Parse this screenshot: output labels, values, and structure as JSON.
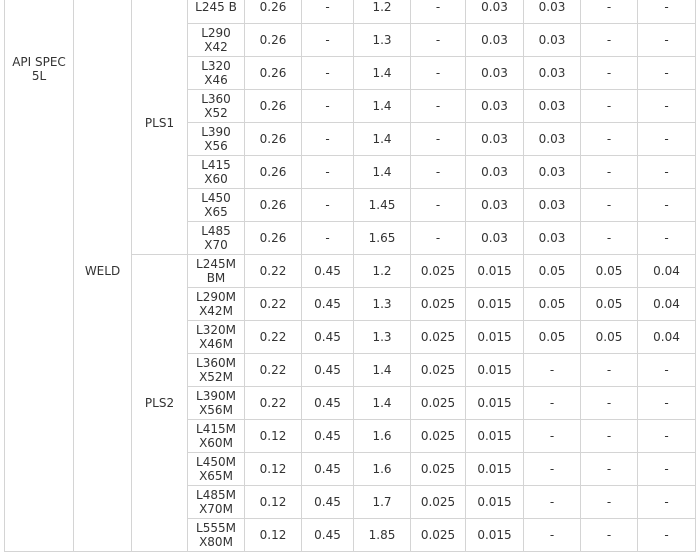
{
  "standard": "API SPEC 5L",
  "process": "WELD",
  "groups": [
    {
      "level": "PLS1",
      "rows": [
        {
          "grade": [
            "L245 B"
          ],
          "values": [
            "0.26",
            "-",
            "1.2",
            "-",
            "0.03",
            "0.03",
            "-",
            "-"
          ]
        },
        {
          "grade": [
            "L290",
            "X42"
          ],
          "values": [
            "0.26",
            "-",
            "1.3",
            "-",
            "0.03",
            "0.03",
            "-",
            "-"
          ]
        },
        {
          "grade": [
            "L320",
            "X46"
          ],
          "values": [
            "0.26",
            "-",
            "1.4",
            "-",
            "0.03",
            "0.03",
            "-",
            "-"
          ]
        },
        {
          "grade": [
            "L360",
            "X52"
          ],
          "values": [
            "0.26",
            "-",
            "1.4",
            "-",
            "0.03",
            "0.03",
            "-",
            "-"
          ]
        },
        {
          "grade": [
            "L390",
            "X56"
          ],
          "values": [
            "0.26",
            "-",
            "1.4",
            "-",
            "0.03",
            "0.03",
            "-",
            "-"
          ]
        },
        {
          "grade": [
            "L415",
            "X60"
          ],
          "values": [
            "0.26",
            "-",
            "1.4",
            "-",
            "0.03",
            "0.03",
            "-",
            "-"
          ]
        },
        {
          "grade": [
            "L450",
            "X65"
          ],
          "values": [
            "0.26",
            "-",
            "1.45",
            "-",
            "0.03",
            "0.03",
            "-",
            "-"
          ]
        },
        {
          "grade": [
            "L485",
            "X70"
          ],
          "values": [
            "0.26",
            "-",
            "1.65",
            "-",
            "0.03",
            "0.03",
            "-",
            "-"
          ]
        }
      ]
    },
    {
      "level": "PLS2",
      "rows": [
        {
          "grade": [
            "L245M",
            "BM"
          ],
          "values": [
            "0.22",
            "0.45",
            "1.2",
            "0.025",
            "0.015",
            "0.05",
            "0.05",
            "0.04"
          ]
        },
        {
          "grade": [
            "L290M",
            "X42M"
          ],
          "values": [
            "0.22",
            "0.45",
            "1.3",
            "0.025",
            "0.015",
            "0.05",
            "0.05",
            "0.04"
          ]
        },
        {
          "grade": [
            "L320M",
            "X46M"
          ],
          "values": [
            "0.22",
            "0.45",
            "1.3",
            "0.025",
            "0.015",
            "0.05",
            "0.05",
            "0.04"
          ]
        },
        {
          "grade": [
            "L360M",
            "X52M"
          ],
          "values": [
            "0.22",
            "0.45",
            "1.4",
            "0.025",
            "0.015",
            "-",
            "-",
            "-"
          ]
        },
        {
          "grade": [
            "L390M",
            "X56M"
          ],
          "values": [
            "0.22",
            "0.45",
            "1.4",
            "0.025",
            "0.015",
            "-",
            "-",
            "-"
          ]
        },
        {
          "grade": [
            "L415M",
            "X60M"
          ],
          "values": [
            "0.12",
            "0.45",
            "1.6",
            "0.025",
            "0.015",
            "-",
            "-",
            "-"
          ]
        },
        {
          "grade": [
            "L450M",
            "X65M"
          ],
          "values": [
            "0.12",
            "0.45",
            "1.6",
            "0.025",
            "0.015",
            "-",
            "-",
            "-"
          ]
        },
        {
          "grade": [
            "L485M",
            "X70M"
          ],
          "values": [
            "0.12",
            "0.45",
            "1.7",
            "0.025",
            "0.015",
            "-",
            "-",
            "-"
          ]
        },
        {
          "grade": [
            "L555M",
            "X80M"
          ],
          "values": [
            "0.12",
            "0.45",
            "1.85",
            "0.025",
            "0.015",
            "-",
            "-",
            "-"
          ]
        }
      ]
    }
  ]
}
